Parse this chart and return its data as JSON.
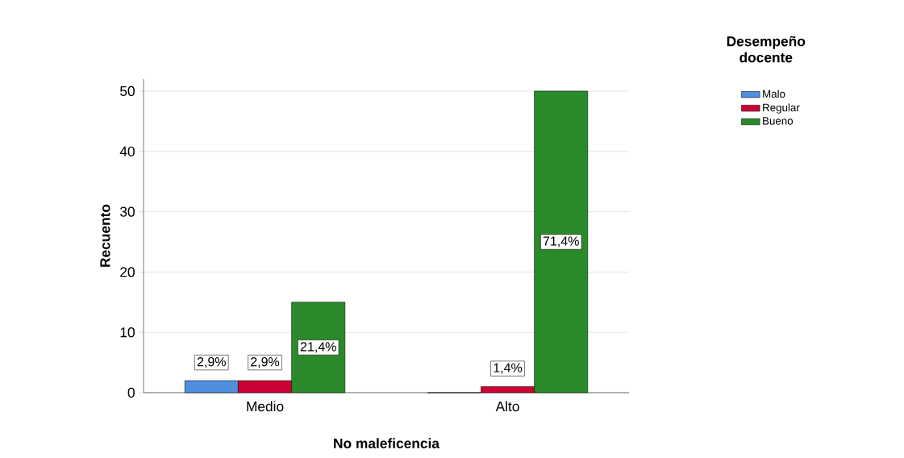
{
  "chart_data": {
    "type": "bar",
    "xlabel": "No maleficencia",
    "ylabel": "Recuento",
    "legend_title": "Desempeño docente",
    "categories": [
      "Medio",
      "Alto"
    ],
    "series": [
      {
        "name": "Malo",
        "color": "#4f8fdf",
        "values": [
          2,
          0
        ]
      },
      {
        "name": "Regular",
        "color": "#cc0033",
        "values": [
          2,
          1
        ]
      },
      {
        "name": "Bueno",
        "color": "#2a8a2a",
        "values": [
          15,
          50
        ]
      }
    ],
    "annotations": [
      "2,9%",
      "2,9%",
      "21,4%",
      "1,4%",
      "71,4%"
    ],
    "ylim": [
      0,
      52
    ],
    "yticks": [
      0,
      10,
      20,
      30,
      40,
      50
    ],
    "grid": "y",
    "legend": "right"
  }
}
